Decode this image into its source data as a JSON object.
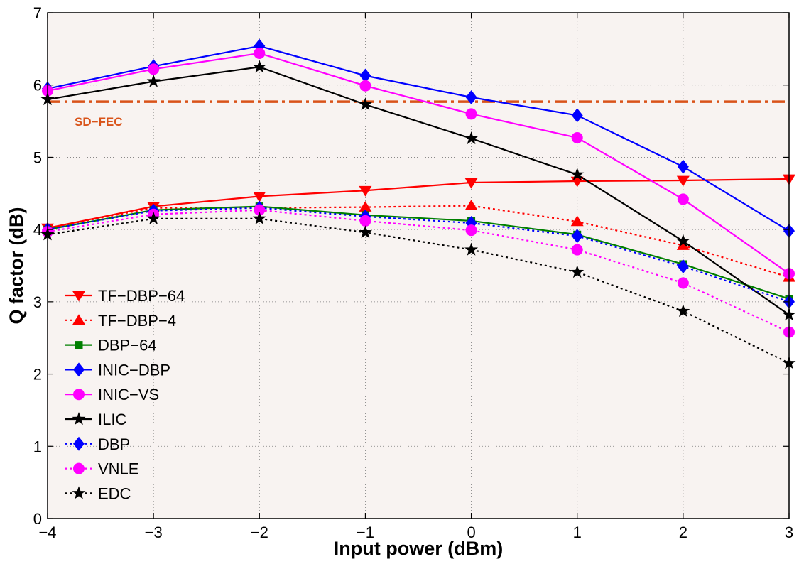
{
  "chart_data": {
    "type": "line",
    "xlabel": "Input power (dBm)",
    "ylabel": "Q factor (dB)",
    "xlim": [
      -4,
      3
    ],
    "ylim": [
      0,
      7
    ],
    "x_ticks": [
      -4,
      -3,
      -2,
      -1,
      0,
      1,
      2,
      3
    ],
    "y_ticks": [
      0,
      1,
      2,
      3,
      4,
      5,
      6,
      7
    ],
    "x": [
      -4,
      -3,
      -2,
      -1,
      0,
      1,
      2,
      3
    ],
    "grid": true,
    "legend_position": "lower-left",
    "background": "#f8f3f1",
    "annotations": [
      {
        "text": "SD−FEC",
        "type": "horizontal-line",
        "y": 5.77,
        "color": "#d95319"
      }
    ],
    "series": [
      {
        "name": "TF−DBP−64",
        "color": "#ff0000",
        "dash": "solid",
        "marker": "triangle-down",
        "values": [
          4.02,
          4.32,
          4.46,
          4.54,
          4.65,
          4.67,
          4.68,
          4.7
        ]
      },
      {
        "name": "TF−DBP−4",
        "color": "#ff0000",
        "dash": "dotted",
        "marker": "triangle-up",
        "values": [
          4.02,
          4.3,
          4.3,
          4.31,
          4.33,
          4.11,
          3.78,
          3.34
        ]
      },
      {
        "name": "DBP−64",
        "color": "#007f00",
        "dash": "solid",
        "marker": "square",
        "values": [
          4.0,
          4.27,
          4.32,
          4.2,
          4.12,
          3.93,
          3.52,
          3.04
        ]
      },
      {
        "name": "INIC−DBP",
        "color": "#0000ff",
        "dash": "solid",
        "marker": "diamond",
        "values": [
          5.95,
          6.26,
          6.54,
          6.13,
          5.83,
          5.58,
          4.87,
          3.98
        ]
      },
      {
        "name": "INIC−VS",
        "color": "#ff00ff",
        "dash": "solid",
        "marker": "circle",
        "values": [
          5.92,
          6.22,
          6.44,
          5.99,
          5.6,
          5.27,
          4.42,
          3.39
        ]
      },
      {
        "name": "ILIC",
        "color": "#000000",
        "dash": "solid",
        "marker": "star",
        "values": [
          5.8,
          6.05,
          6.25,
          5.73,
          5.26,
          4.76,
          3.84,
          2.82
        ]
      },
      {
        "name": "DBP",
        "color": "#0000ff",
        "dash": "dotted",
        "marker": "diamond",
        "values": [
          4.0,
          4.26,
          4.3,
          4.18,
          4.09,
          3.91,
          3.49,
          3.0
        ]
      },
      {
        "name": "VNLE",
        "color": "#ff00ff",
        "dash": "dotted",
        "marker": "circle",
        "values": [
          3.97,
          4.21,
          4.27,
          4.12,
          3.99,
          3.72,
          3.26,
          2.58
        ]
      },
      {
        "name": "EDC",
        "color": "#000000",
        "dash": "dotted",
        "marker": "star",
        "values": [
          3.93,
          4.15,
          4.15,
          3.96,
          3.72,
          3.41,
          2.87,
          2.15
        ]
      }
    ]
  }
}
